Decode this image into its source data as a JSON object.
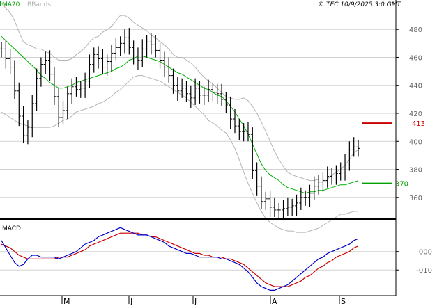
{
  "header": {
    "legend_ma": "MA20",
    "legend_bb": "BBands",
    "copyright": "© TEC 10/9/2025 3:0 GMT"
  },
  "colors": {
    "ma": "#00b000",
    "bbands": "#b4b4b4",
    "price_bars": "#000000",
    "macd": "#0000cc",
    "signal": "#cc0000",
    "resistance": "#cc0000",
    "support": "#00a000",
    "grid": "#d2d2d2",
    "frame": "#000000"
  },
  "chart_data": [
    {
      "type": "bar",
      "name": "price",
      "ylim": [
        345,
        495
      ],
      "yticks": [
        360,
        380,
        400,
        420,
        440,
        460,
        480
      ],
      "grid": true,
      "month_labels": [
        "M",
        "J",
        "J",
        "A",
        "S"
      ],
      "annotations": {
        "resistance": {
          "value": 413,
          "label": "413"
        },
        "support": {
          "value": 370,
          "label": "370"
        }
      },
      "legend": [
        "MA20",
        "BBands"
      ],
      "series": [
        {
          "type": "ohlc",
          "close": [
            466,
            459,
            453,
            436,
            418,
            404,
            410,
            427,
            445,
            455,
            458,
            448,
            432,
            417,
            422,
            434,
            439,
            437,
            438,
            443,
            455,
            462,
            459,
            453,
            457,
            463,
            467,
            470,
            474,
            467,
            461,
            458,
            466,
            471,
            469,
            465,
            458,
            453,
            447,
            440,
            436,
            438,
            434,
            431,
            438,
            433,
            433,
            437,
            435,
            434,
            430,
            426,
            416,
            411,
            407,
            407,
            405,
            379,
            368,
            357,
            359,
            353,
            351,
            351,
            352,
            353,
            354,
            356,
            360,
            360,
            363,
            368,
            371,
            372,
            375,
            376,
            377,
            378,
            386,
            394,
            396,
            395
          ],
          "note": "daily bars, estimated"
        },
        {
          "type": "line",
          "values": [
            475,
            472,
            469,
            466,
            463,
            460,
            457,
            454,
            451,
            447,
            445,
            442,
            440,
            438,
            438,
            439,
            440,
            442,
            443,
            444,
            445,
            446,
            447,
            448,
            449,
            450,
            452,
            453,
            455,
            458,
            459,
            461,
            461,
            460,
            459,
            458,
            457,
            455,
            453,
            451,
            449,
            448,
            446,
            444,
            442,
            440,
            438,
            437,
            435,
            433,
            432,
            429,
            425,
            421,
            416,
            411,
            405,
            398,
            391,
            384,
            379,
            376,
            374,
            372,
            369,
            367,
            366,
            365,
            364,
            363,
            364,
            364,
            365,
            365,
            366,
            367,
            368,
            369,
            369,
            370,
            371,
            372
          ]
        },
        {
          "type": "line",
          "values": [
            499,
            495,
            492,
            486,
            478,
            471,
            469,
            468,
            466,
            466,
            464,
            463,
            460,
            458,
            458,
            458,
            459,
            462,
            464,
            467,
            471,
            474,
            475,
            478,
            480,
            482,
            486,
            490,
            490,
            488,
            485,
            483,
            481,
            479,
            476,
            474,
            471,
            469,
            466,
            462,
            460,
            460,
            458,
            456,
            453,
            449,
            446,
            443,
            441,
            438,
            435,
            432,
            431,
            430,
            430,
            431,
            429,
            425,
            420,
            414,
            407,
            400,
            393,
            387,
            382,
            378,
            376,
            375,
            374,
            373,
            372,
            372,
            373,
            373,
            373,
            376,
            378,
            380,
            383,
            387,
            392,
            394
          ]
        },
        {
          "type": "line",
          "values": [
            421,
            419,
            417,
            415,
            413,
            412,
            411,
            410,
            410,
            410,
            410,
            410,
            411,
            413,
            415,
            416,
            418,
            421,
            422,
            423,
            424,
            425,
            427,
            428,
            430,
            432,
            435,
            437,
            440,
            443,
            446,
            447,
            447,
            446,
            445,
            444,
            443,
            441,
            439,
            437,
            435,
            433,
            431,
            428,
            425,
            422,
            419,
            415,
            413,
            411,
            408,
            406,
            401,
            395,
            387,
            378,
            370,
            363,
            356,
            350,
            345,
            342,
            340,
            338,
            337,
            336,
            336,
            335,
            335,
            335,
            336,
            337,
            338,
            340,
            342,
            344,
            346,
            348,
            348,
            349,
            350,
            350
          ]
        }
      ]
    },
    {
      "type": "line",
      "name": "macd",
      "title": "MACD",
      "yticks": [
        0,
        -10
      ],
      "ytick_labels": [
        "000",
        "-010"
      ],
      "ylim": [
        -23.5,
        16.5
      ],
      "series": [
        {
          "values": [
            6,
            2,
            -2,
            -6,
            -8,
            -7,
            -4,
            -2,
            -2,
            -3,
            -3,
            -3,
            -3,
            -4,
            -3,
            -2,
            -1,
            0,
            2,
            4,
            5,
            6,
            8,
            9,
            10,
            11,
            12,
            13,
            12,
            11,
            10,
            9,
            9,
            9,
            8,
            7,
            6,
            5,
            3,
            2,
            1,
            0,
            -1,
            -1,
            -2,
            -3,
            -3,
            -3,
            -3,
            -3,
            -4,
            -4,
            -5,
            -6,
            -7,
            -9,
            -11,
            -14,
            -17,
            -19,
            -20,
            -21,
            -21,
            -20,
            -19,
            -18,
            -16,
            -14,
            -12,
            -10,
            -8,
            -6,
            -4,
            -3,
            -1,
            0,
            1,
            2,
            3,
            4,
            6,
            7
          ]
        },
        {
          "values": [
            4,
            3,
            2,
            0,
            -2,
            -3,
            -4,
            -4,
            -4,
            -4,
            -4,
            -4,
            -4,
            -3,
            -3,
            -3,
            -2,
            -1,
            0,
            1,
            3,
            4,
            5,
            6,
            7,
            8,
            9,
            10,
            10,
            10,
            10,
            10,
            9,
            9,
            8,
            8,
            7,
            6,
            5,
            4,
            3,
            2,
            1,
            0,
            -1,
            -1,
            -2,
            -2,
            -3,
            -3,
            -3,
            -4,
            -4,
            -5,
            -6,
            -7,
            -9,
            -11,
            -13,
            -15,
            -17,
            -18,
            -19,
            -19,
            -19,
            -19,
            -18,
            -17,
            -16,
            -14,
            -13,
            -11,
            -9,
            -8,
            -6,
            -5,
            -3,
            -2,
            -1,
            0,
            2,
            3
          ]
        }
      ]
    }
  ]
}
